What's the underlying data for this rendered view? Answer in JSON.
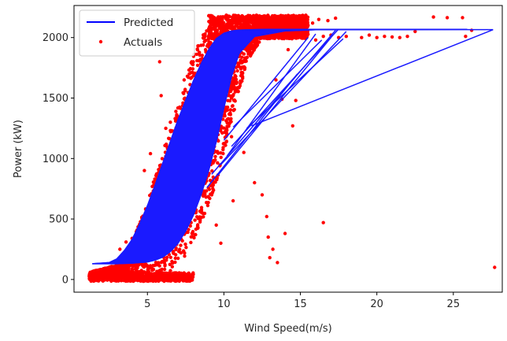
{
  "chart_data": {
    "type": "scatter",
    "title": "",
    "xlabel": "Wind Speed(m/s)",
    "ylabel": "Power (kW)",
    "xlim": [
      0.2,
      28.2
    ],
    "ylim": [
      -105,
      2265
    ],
    "xticks": [
      5,
      10,
      15,
      20,
      25
    ],
    "xtick_labels": [
      "5",
      "10",
      "15",
      "20",
      "25"
    ],
    "yticks": [
      0,
      500,
      1000,
      1500,
      2000
    ],
    "ytick_labels": [
      "0",
      "500",
      "1000",
      "1500",
      "2000"
    ],
    "grid": false,
    "legend": {
      "placement": "top-left",
      "entries": [
        {
          "label": "Predicted",
          "kind": "line",
          "color": "#0000ff"
        },
        {
          "label": "Actuals",
          "kind": "marker",
          "color": "#ff0000"
        }
      ]
    },
    "series": [
      {
        "name": "Predicted",
        "kind": "line",
        "color": "#1a1aff",
        "curve_low": {
          "x": [
            1.4,
            3,
            4,
            5,
            5.5,
            6,
            6.5,
            7,
            7.5,
            8,
            8.5,
            9,
            9.5,
            10,
            10.5,
            11,
            12,
            14,
            16,
            25.9
          ],
          "y": [
            130,
            130,
            135,
            145,
            160,
            185,
            230,
            300,
            400,
            530,
            700,
            900,
            1140,
            1420,
            1680,
            1870,
            2010,
            2055,
            2065,
            2068
          ]
        },
        "curve_high": {
          "x": [
            1.4,
            2.5,
            3,
            3.5,
            4,
            4.5,
            5,
            5.5,
            6,
            6.5,
            7,
            7.5,
            8,
            8.5,
            9,
            9.5,
            10,
            10.5,
            11,
            12,
            13,
            15,
            25.9
          ],
          "y": [
            130,
            140,
            170,
            240,
            330,
            460,
            610,
            780,
            960,
            1140,
            1320,
            1480,
            1640,
            1780,
            1900,
            1990,
            2035,
            2055,
            2062,
            2066,
            2068,
            2068,
            2068
          ]
        },
        "outlier_segments": [
          {
            "x": [
              11.5,
              17.8
            ],
            "y": [
              1250,
              1990
            ]
          },
          {
            "x": [
              11.8,
              27.6
            ],
            "y": [
              1270,
              2065
            ]
          },
          {
            "x": [
              9.6,
              17.0
            ],
            "y": [
              860,
              2000
            ]
          },
          {
            "x": [
              10.2,
              16.0
            ],
            "y": [
              1020,
              2030
            ]
          },
          {
            "x": [
              10.6,
              16.4
            ],
            "y": [
              1260,
              1980
            ]
          },
          {
            "x": [
              10.0,
              15.5
            ],
            "y": [
              1150,
              2000
            ]
          },
          {
            "x": [
              9.8,
              18.0
            ],
            "y": [
              950,
              2050
            ]
          },
          {
            "x": [
              10.5,
              17.5
            ],
            "y": [
              1100,
              2070
            ]
          },
          {
            "x": [
              9.2,
              17.3
            ],
            "y": [
              870,
              2060
            ]
          },
          {
            "x": [
              8.9,
              14.8
            ],
            "y": [
              760,
              1700
            ]
          },
          {
            "x": [
              17.0,
              27.6
            ],
            "y": [
              2066,
              2066
            ]
          }
        ]
      },
      {
        "name": "Actuals",
        "kind": "scatter",
        "color": "#ff0000",
        "bulk_bands": {
          "x_range": [
            1.2,
            15.5
          ],
          "band_low": {
            "x": [
              1.2,
              4,
              5.5,
              6.5,
              7.5,
              8.5,
              9.5,
              10.5,
              11.5,
              12.5,
              15.5
            ],
            "y": [
              0,
              0,
              20,
              60,
              200,
              450,
              800,
              1300,
              1800,
              1990,
              2000
            ]
          },
          "band_high": {
            "x": [
              1.2,
              3,
              4,
              5,
              6,
              7,
              8,
              9,
              10,
              11,
              15.5
            ],
            "y": [
              60,
              120,
              300,
              650,
              1050,
              1450,
              1850,
              2130,
              2180,
              2180,
              2180
            ]
          }
        },
        "points": [
          [
            5.8,
            1800
          ],
          [
            5.9,
            1520
          ],
          [
            6.5,
            1300
          ],
          [
            7.0,
            1100
          ],
          [
            6.2,
            1250
          ],
          [
            4.0,
            340
          ],
          [
            3.6,
            310
          ],
          [
            3.2,
            250
          ],
          [
            4.8,
            900
          ],
          [
            5.2,
            1040
          ],
          [
            9.2,
            700
          ],
          [
            9.5,
            450
          ],
          [
            9.8,
            300
          ],
          [
            10.5,
            1180
          ],
          [
            10.6,
            650
          ],
          [
            11.3,
            1050
          ],
          [
            12.0,
            800
          ],
          [
            12.5,
            700
          ],
          [
            13.0,
            180
          ],
          [
            13.2,
            250
          ],
          [
            13.5,
            140
          ],
          [
            14.0,
            380
          ],
          [
            14.5,
            1270
          ],
          [
            14.7,
            1480
          ],
          [
            16.5,
            470
          ],
          [
            12.9,
            350
          ],
          [
            12.8,
            520
          ],
          [
            13.4,
            1650
          ],
          [
            13.8,
            1490
          ],
          [
            14.2,
            1900
          ],
          [
            16.0,
            1980
          ],
          [
            16.5,
            2010
          ],
          [
            17.0,
            2020
          ],
          [
            17.5,
            2000
          ],
          [
            18.0,
            2010
          ],
          [
            19.0,
            2000
          ],
          [
            19.5,
            2020
          ],
          [
            20.0,
            2000
          ],
          [
            20.5,
            2010
          ],
          [
            21.0,
            2005
          ],
          [
            21.5,
            2000
          ],
          [
            22.0,
            2010
          ],
          [
            15.8,
            2120
          ],
          [
            16.2,
            2150
          ],
          [
            16.8,
            2140
          ],
          [
            17.3,
            2160
          ],
          [
            23.7,
            2170
          ],
          [
            24.6,
            2165
          ],
          [
            25.6,
            2165
          ],
          [
            25.8,
            2010
          ],
          [
            27.7,
            100
          ],
          [
            26.2,
            2060
          ],
          [
            22.5,
            2050
          ],
          [
            15.0,
            2150
          ],
          [
            15.5,
            2100
          ],
          [
            8.8,
            1900
          ],
          [
            9.0,
            2000
          ],
          [
            9.4,
            2080
          ],
          [
            7.4,
            1650
          ],
          [
            8.0,
            1800
          ]
        ]
      }
    ]
  }
}
